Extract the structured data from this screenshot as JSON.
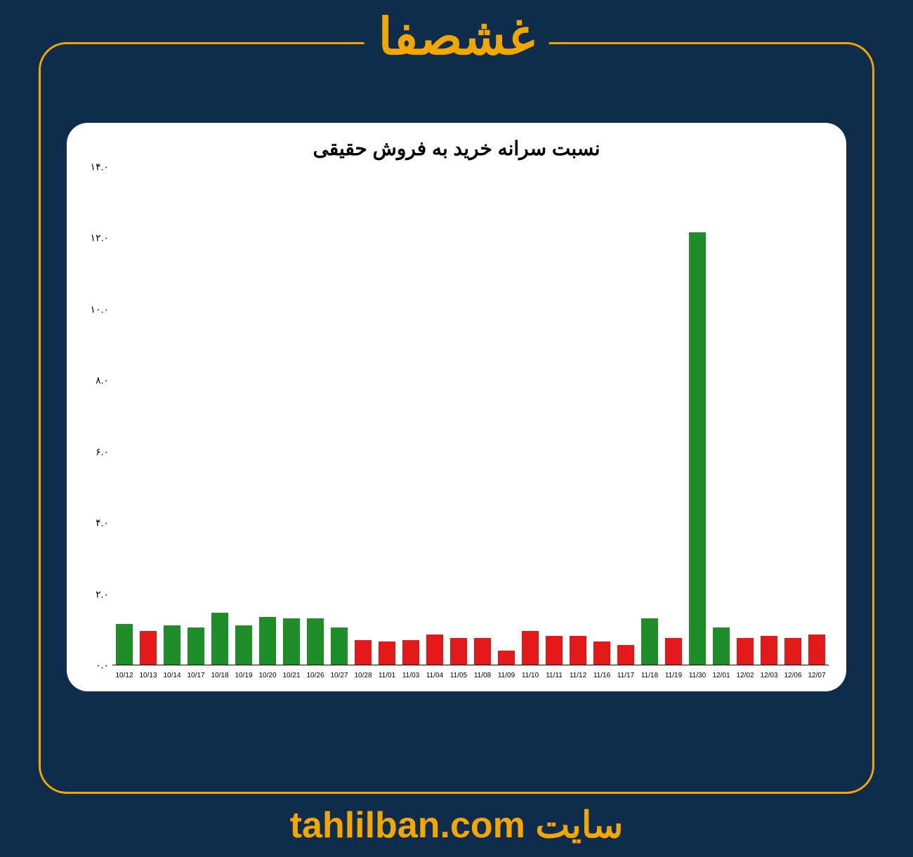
{
  "header": {
    "title": "غشصفا",
    "title_color": "#f2a700",
    "title_fontsize": 72
  },
  "frame": {
    "border_color": "#f2a700",
    "border_radius": 40,
    "border_width": 3
  },
  "page": {
    "background_color": "#102c4c"
  },
  "chart": {
    "type": "bar",
    "title": "نسبت سرانه خرید به فروش حقیقی",
    "title_fontsize": 28,
    "title_color": "#000000",
    "background_color": "#ffffff",
    "card_border_radius": 30,
    "ylim": [
      0.0,
      14.0
    ],
    "ytick_step": 2.0,
    "yticks": [
      "۰.۰",
      "۲.۰",
      "۴.۰",
      "۶.۰",
      "۸.۰",
      "۱۰.۰",
      "۱۲.۰",
      "۱۴.۰"
    ],
    "ytick_values": [
      0.0,
      2.0,
      4.0,
      6.0,
      8.0,
      10.0,
      12.0,
      14.0
    ],
    "axis_label_fontsize": 14,
    "x_label_fontsize": 10,
    "bar_width_ratio": 0.7,
    "green": "#1f8e28",
    "red": "#e31919",
    "categories": [
      "10/12",
      "10/13",
      "10/14",
      "10/17",
      "10/18",
      "10/19",
      "10/20",
      "10/21",
      "10/26",
      "10/27",
      "10/28",
      "11/01",
      "11/03",
      "11/04",
      "11/05",
      "11/08",
      "11/09",
      "11/10",
      "11/11",
      "11/12",
      "11/16",
      "11/17",
      "11/18",
      "11/19",
      "11/30",
      "12/01",
      "12/02",
      "12/03",
      "12/06",
      "12/07"
    ],
    "values": [
      1.15,
      0.95,
      1.1,
      1.05,
      1.45,
      1.1,
      1.35,
      1.3,
      1.3,
      1.05,
      0.7,
      0.65,
      0.7,
      0.85,
      0.75,
      0.75,
      0.4,
      0.95,
      0.8,
      0.8,
      0.65,
      0.55,
      1.3,
      0.75,
      12.15,
      1.05,
      0.75,
      0.8,
      0.75,
      0.85
    ],
    "colors": [
      "green",
      "red",
      "green",
      "green",
      "green",
      "green",
      "green",
      "green",
      "green",
      "green",
      "red",
      "red",
      "red",
      "red",
      "red",
      "red",
      "red",
      "red",
      "red",
      "red",
      "red",
      "red",
      "green",
      "red",
      "green",
      "green",
      "red",
      "red",
      "red",
      "red"
    ]
  },
  "footer": {
    "label": "سایت",
    "url": "tahlilban.com",
    "color": "#f2a700",
    "fontsize": 52
  }
}
